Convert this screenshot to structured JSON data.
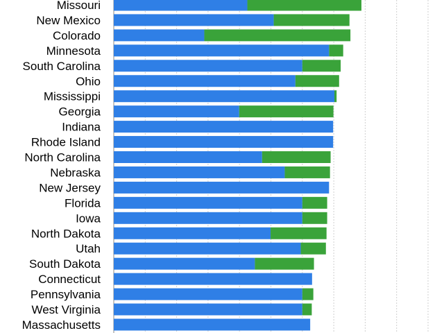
{
  "chart_data": {
    "type": "bar",
    "orientation": "horizontal",
    "stacked": true,
    "categories": [
      "Missouri",
      "New Mexico",
      "Colorado",
      "Minnesota",
      "South Carolina",
      "Ohio",
      "Mississippi",
      "Georgia",
      "Indiana",
      "Rhode Island",
      "North Carolina",
      "Nebraska",
      "New Jersey",
      "Florida",
      "Iowa",
      "North Dakota",
      "Utah",
      "South Dakota",
      "Connecticut",
      "Pennsylvania",
      "West Virginia",
      "Massachusetts"
    ],
    "series": [
      {
        "color": "#2f7fe6",
        "values": [
          42.5,
          50.9,
          28.8,
          68.5,
          60.0,
          57.8,
          70.2,
          39.9,
          69.8,
          69.8,
          47.2,
          54.4,
          68.5,
          60.0,
          60.0,
          49.9,
          59.5,
          44.9,
          63.1,
          60.0,
          60.0,
          62.5
        ]
      },
      {
        "color": "#3aa33a",
        "values": [
          36.3,
          24.1,
          46.5,
          4.5,
          12.2,
          13.9,
          0.7,
          30.0,
          0,
          0,
          21.8,
          14.4,
          0,
          7.9,
          7.9,
          17.8,
          8.0,
          18.8,
          0,
          3.5,
          3.0,
          0
        ]
      }
    ],
    "xlim": [
      0,
      100
    ],
    "grid": true
  }
}
